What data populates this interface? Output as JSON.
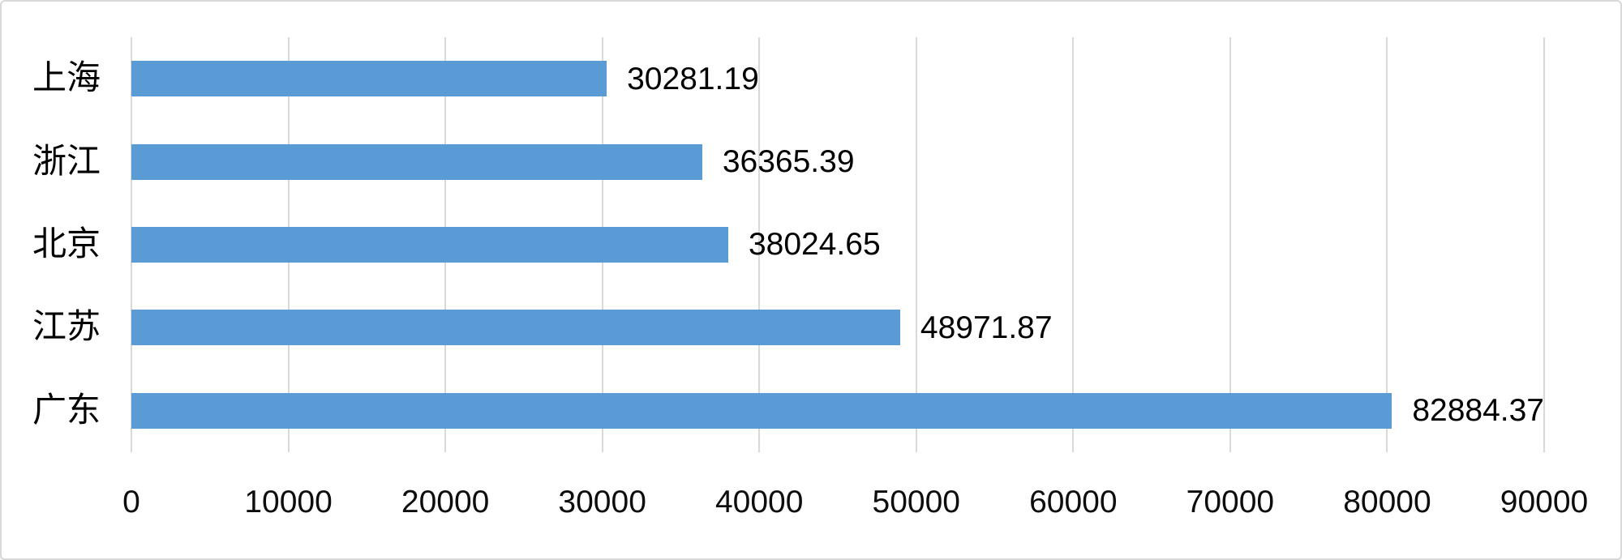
{
  "chart_data": {
    "type": "bar",
    "orientation": "horizontal",
    "title": "",
    "xlabel": "",
    "ylabel": "",
    "categories": [
      "上海",
      "浙江",
      "北京",
      "江苏",
      "广东"
    ],
    "values": [
      30281.19,
      36365.39,
      38024.65,
      48971.87,
      82884.37
    ],
    "value_labels": [
      "30281.19",
      "36365.39",
      "38024.65",
      "48971.87",
      "82884.37"
    ],
    "x_ticks": [
      0,
      10000,
      20000,
      30000,
      40000,
      50000,
      60000,
      70000,
      80000,
      90000
    ],
    "x_tick_labels": [
      "0",
      "10000",
      "20000",
      "30000",
      "40000",
      "50000",
      "60000",
      "70000",
      "80000",
      "90000"
    ],
    "xlim": [
      0,
      90000
    ],
    "grid": true,
    "legend": "none",
    "bar_color": "#5b9bd5",
    "gridline_color": "#d9d9d9",
    "text_color": "#000000"
  }
}
